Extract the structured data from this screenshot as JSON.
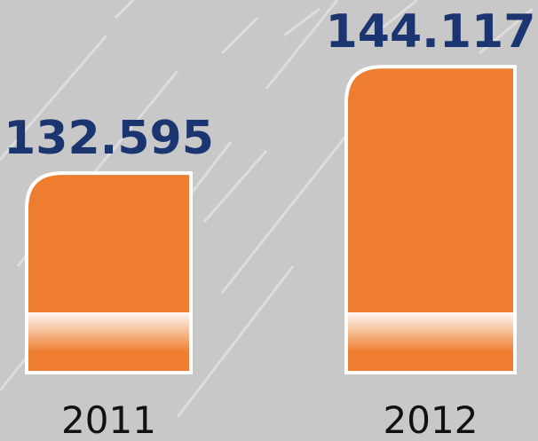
{
  "chart_data": {
    "type": "bar",
    "categories": [
      "2011",
      "2012"
    ],
    "values": [
      132595,
      144117
    ],
    "value_labels": [
      "132.595",
      "144.117"
    ],
    "color": "#ee7d2f",
    "ylim": [
      111000,
      145000
    ]
  }
}
